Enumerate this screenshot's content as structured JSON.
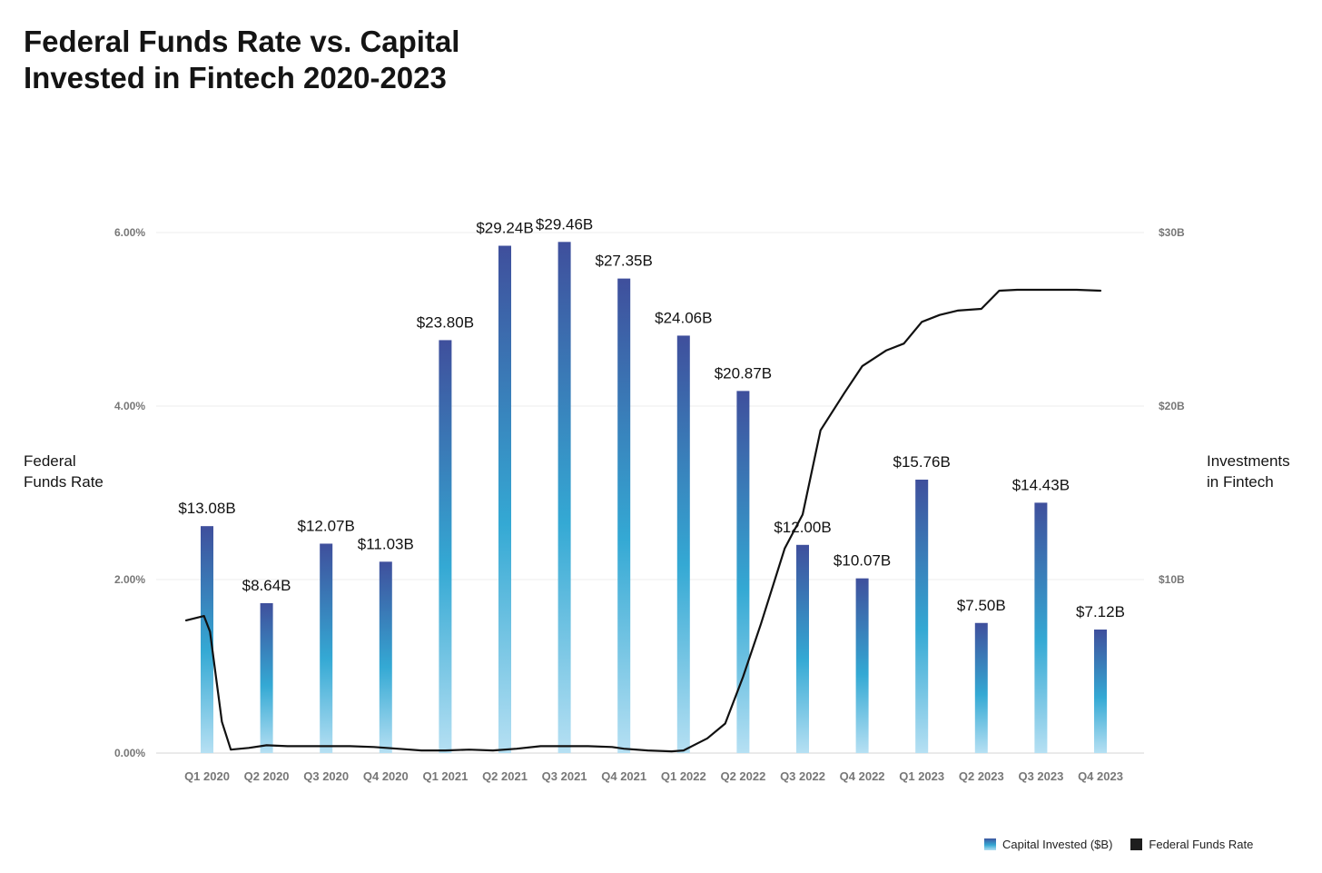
{
  "title_lines": [
    "Federal Funds Rate vs. Capital",
    "Invested in Fintech 2020-2023"
  ],
  "left_axis_label_lines": [
    "Federal",
    "Funds Rate"
  ],
  "right_axis_label_lines": [
    "Investments",
    "in Fintech"
  ],
  "legend": {
    "capital": "Capital Invested ($B)",
    "rate": "Federal Funds Rate"
  },
  "colors": {
    "bar_top": "#3f4f9c",
    "bar_mid": "#34a9d4",
    "bar_bottom": "#b6e0f3",
    "line": "#111111",
    "grid": "#ececec",
    "tick_text": "#777777"
  },
  "chart_data": {
    "type": "bar",
    "categories": [
      "Q1 2020",
      "Q2 2020",
      "Q3 2020",
      "Q4 2020",
      "Q1 2021",
      "Q2 2021",
      "Q3 2021",
      "Q4 2021",
      "Q1 2022",
      "Q2 2022",
      "Q3 2022",
      "Q4 2022",
      "Q1 2023",
      "Q2 2023",
      "Q3 2023",
      "Q4 2023"
    ],
    "series": [
      {
        "name": "Capital Invested ($B)",
        "axis": "right",
        "type": "bar",
        "values": [
          13.08,
          8.64,
          12.07,
          11.03,
          23.8,
          29.24,
          29.46,
          27.35,
          24.06,
          20.87,
          12.0,
          10.07,
          15.76,
          7.5,
          14.43,
          7.12
        ],
        "data_labels": [
          "$13.08B",
          "$8.64B",
          "$12.07B",
          "$11.03B",
          "$23.80B",
          "$29.24B",
          "$29.46B",
          "$27.35B",
          "$24.06B",
          "$20.87B",
          "$12.00B",
          "$10.07B",
          "$15.76B",
          "$7.50B",
          "$14.43B",
          "$7.12B"
        ]
      },
      {
        "name": "Federal Funds Rate",
        "axis": "left",
        "type": "line",
        "x": [
          -0.35,
          -0.05,
          0.05,
          0.25,
          0.4,
          0.7,
          1.0,
          1.35,
          1.7,
          2.0,
          2.4,
          2.8,
          3.2,
          3.6,
          4.0,
          4.4,
          4.8,
          5.2,
          5.6,
          6.0,
          6.4,
          6.8,
          7.0,
          7.4,
          7.8,
          8.0,
          8.4,
          8.7,
          9.0,
          9.3,
          9.7,
          10.0,
          10.3,
          10.7,
          11.0,
          11.4,
          11.7,
          12.0,
          12.3,
          12.6,
          13.0,
          13.3,
          13.6,
          14.0,
          14.3,
          14.6,
          15.0
        ],
        "values": [
          1.53,
          1.58,
          1.4,
          0.36,
          0.04,
          0.06,
          0.09,
          0.08,
          0.08,
          0.08,
          0.08,
          0.07,
          0.05,
          0.03,
          0.03,
          0.04,
          0.03,
          0.05,
          0.08,
          0.08,
          0.08,
          0.07,
          0.05,
          0.03,
          0.02,
          0.03,
          0.17,
          0.34,
          0.88,
          1.49,
          2.36,
          2.75,
          3.72,
          4.15,
          4.46,
          4.64,
          4.72,
          4.97,
          5.05,
          5.1,
          5.12,
          5.33,
          5.34,
          5.34,
          5.34,
          5.34,
          5.33
        ]
      }
    ],
    "left_axis": {
      "ylim": [
        0,
        6
      ],
      "ticks": [
        "0.00%",
        "2.00%",
        "4.00%",
        "6.00%"
      ]
    },
    "right_axis": {
      "ylim": [
        0,
        30
      ],
      "ticks": [
        "$10B",
        "$20B",
        "$30B"
      ]
    },
    "grid": true,
    "legend_position": "bottom-right"
  }
}
